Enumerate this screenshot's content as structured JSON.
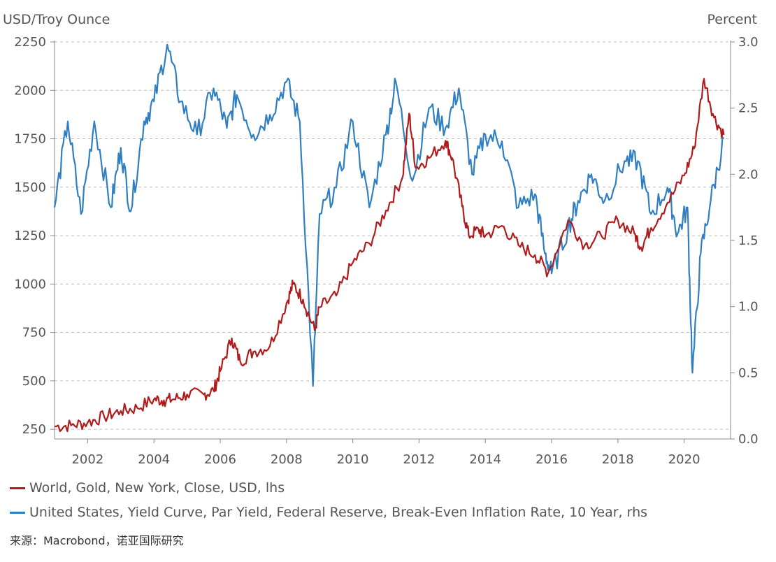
{
  "chart_data": {
    "type": "line",
    "left_axis_title": "USD/Troy Ounce",
    "right_axis_title": "Percent",
    "x_range": [
      2001.0,
      2021.4
    ],
    "x_ticks": [
      "2002",
      "2004",
      "2006",
      "2008",
      "2010",
      "2012",
      "2014",
      "2016",
      "2018",
      "2020"
    ],
    "y_left_range": [
      200,
      2250
    ],
    "y_left_ticks": [
      "250",
      "500",
      "750",
      "1000",
      "1250",
      "1500",
      "1750",
      "2000",
      "2250"
    ],
    "y_right_range": [
      0.0,
      3.0
    ],
    "y_right_ticks": [
      "0.0",
      "0.5",
      "1.0",
      "1.5",
      "2.0",
      "2.5",
      "3.0"
    ],
    "grid": "horizontal dashed",
    "series": [
      {
        "name": "World, Gold, New York, Close, USD, lhs",
        "axis": "left",
        "color": "#b01c1c",
        "points": [
          [
            2001.0,
            265
          ],
          [
            2001.5,
            270
          ],
          [
            2002.0,
            285
          ],
          [
            2002.5,
            315
          ],
          [
            2003.0,
            345
          ],
          [
            2003.5,
            360
          ],
          [
            2004.0,
            405
          ],
          [
            2004.3,
            400
          ],
          [
            2004.6,
            405
          ],
          [
            2005.0,
            430
          ],
          [
            2005.5,
            430
          ],
          [
            2005.8,
            450
          ],
          [
            2006.0,
            550
          ],
          [
            2006.35,
            720
          ],
          [
            2006.6,
            600
          ],
          [
            2007.0,
            650
          ],
          [
            2007.5,
            680
          ],
          [
            2008.0,
            900
          ],
          [
            2008.2,
            1000
          ],
          [
            2008.5,
            920
          ],
          [
            2008.85,
            760
          ],
          [
            2009.0,
            880
          ],
          [
            2009.5,
            940
          ],
          [
            2010.0,
            1110
          ],
          [
            2010.5,
            1210
          ],
          [
            2011.0,
            1380
          ],
          [
            2011.5,
            1550
          ],
          [
            2011.7,
            1880
          ],
          [
            2011.9,
            1600
          ],
          [
            2012.3,
            1650
          ],
          [
            2012.8,
            1740
          ],
          [
            2013.0,
            1650
          ],
          [
            2013.3,
            1400
          ],
          [
            2013.5,
            1250
          ],
          [
            2013.8,
            1280
          ],
          [
            2014.0,
            1250
          ],
          [
            2014.5,
            1300
          ],
          [
            2015.0,
            1200
          ],
          [
            2015.5,
            1150
          ],
          [
            2015.9,
            1060
          ],
          [
            2016.5,
            1330
          ],
          [
            2017.0,
            1200
          ],
          [
            2017.5,
            1250
          ],
          [
            2018.0,
            1330
          ],
          [
            2018.5,
            1260
          ],
          [
            2018.7,
            1190
          ],
          [
            2019.0,
            1290
          ],
          [
            2019.5,
            1420
          ],
          [
            2020.0,
            1560
          ],
          [
            2020.3,
            1700
          ],
          [
            2020.6,
            2060
          ],
          [
            2020.9,
            1860
          ],
          [
            2021.2,
            1770
          ]
        ]
      },
      {
        "name": "United States, Yield Curve, Par Yield, Federal Reserve, Break-Even Inflation Rate, 10 Year, rhs",
        "axis": "right",
        "color": "#2f7fc1",
        "points": [
          [
            2001.0,
            1.75
          ],
          [
            2001.4,
            2.4
          ],
          [
            2001.8,
            1.7
          ],
          [
            2002.2,
            2.4
          ],
          [
            2002.7,
            1.75
          ],
          [
            2003.0,
            2.2
          ],
          [
            2003.3,
            1.72
          ],
          [
            2003.7,
            2.4
          ],
          [
            2004.0,
            2.55
          ],
          [
            2004.4,
            2.98
          ],
          [
            2004.8,
            2.55
          ],
          [
            2005.3,
            2.3
          ],
          [
            2005.8,
            2.65
          ],
          [
            2006.2,
            2.35
          ],
          [
            2006.5,
            2.6
          ],
          [
            2007.0,
            2.3
          ],
          [
            2007.5,
            2.45
          ],
          [
            2008.0,
            2.7
          ],
          [
            2008.4,
            2.4
          ],
          [
            2008.8,
            0.4
          ],
          [
            2009.0,
            1.7
          ],
          [
            2009.5,
            1.9
          ],
          [
            2010.0,
            2.4
          ],
          [
            2010.5,
            1.75
          ],
          [
            2011.0,
            2.3
          ],
          [
            2011.3,
            2.7
          ],
          [
            2011.8,
            1.95
          ],
          [
            2012.3,
            2.5
          ],
          [
            2012.8,
            2.35
          ],
          [
            2013.2,
            2.65
          ],
          [
            2013.6,
            2.0
          ],
          [
            2014.0,
            2.3
          ],
          [
            2014.5,
            2.25
          ],
          [
            2015.0,
            1.75
          ],
          [
            2015.5,
            1.85
          ],
          [
            2015.8,
            1.4
          ],
          [
            2016.0,
            1.25
          ],
          [
            2016.5,
            1.6
          ],
          [
            2016.8,
            1.8
          ],
          [
            2017.2,
            2.0
          ],
          [
            2017.6,
            1.8
          ],
          [
            2018.2,
            2.1
          ],
          [
            2018.6,
            2.1
          ],
          [
            2019.0,
            1.7
          ],
          [
            2019.5,
            1.9
          ],
          [
            2019.8,
            1.55
          ],
          [
            2020.1,
            1.75
          ],
          [
            2020.25,
            0.5
          ],
          [
            2020.5,
            1.4
          ],
          [
            2020.8,
            1.8
          ],
          [
            2021.2,
            2.27
          ]
        ]
      }
    ]
  },
  "legend": {
    "gold": "World, Gold, New York, Close, USD, lhs",
    "breakeven": "United States, Yield Curve, Par Yield, Federal Reserve, Break-Even Inflation Rate, 10 Year, rhs"
  },
  "source": "来源：Macrobond，诺亚国际研究"
}
